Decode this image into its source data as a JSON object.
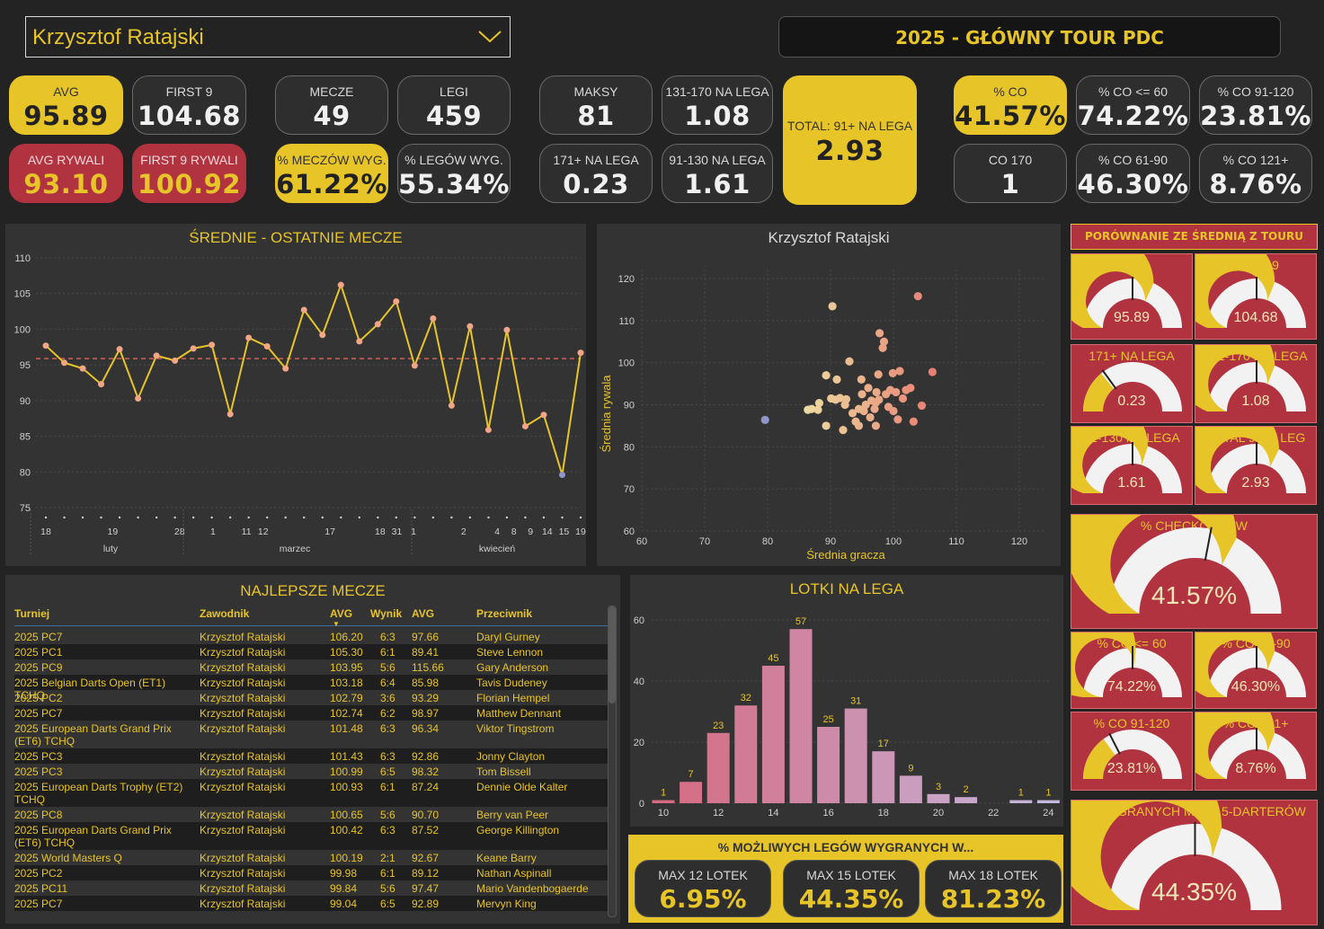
{
  "header": {
    "player_select": "Krzysztof Ratajski",
    "tour_title": "2025 - GŁÓWNY TOUR PDC"
  },
  "kpis": [
    {
      "id": "avg",
      "label": "AVG",
      "value": "95.89",
      "style": "yellow"
    },
    {
      "id": "first9",
      "label": "FIRST 9",
      "value": "104.68",
      "style": "dark"
    },
    {
      "id": "avg-opp",
      "label": "AVG RYWALI",
      "value": "93.10",
      "style": "red"
    },
    {
      "id": "first9-opp",
      "label": "FIRST 9 RYWALI",
      "value": "100.92",
      "style": "red"
    },
    {
      "id": "matches",
      "label": "MECZE",
      "value": "49",
      "style": "dark"
    },
    {
      "id": "legs",
      "label": "LEGI",
      "value": "459",
      "style": "dark"
    },
    {
      "id": "match-win",
      "label": "% MECZÓW WYG.",
      "value": "61.22%",
      "style": "yellow"
    },
    {
      "id": "leg-win",
      "label": "% LEGÓW WYG.",
      "value": "55.34%",
      "style": "dark"
    },
    {
      "id": "max",
      "label": "MAKSY",
      "value": "81",
      "style": "dark"
    },
    {
      "id": "s131",
      "label": "131-170 NA LEGA",
      "value": "1.08",
      "style": "dark"
    },
    {
      "id": "s171",
      "label": "171+ NA LEGA",
      "value": "0.23",
      "style": "dark"
    },
    {
      "id": "s91",
      "label": "91-130 NA LEGA",
      "value": "1.61",
      "style": "dark"
    },
    {
      "id": "total91",
      "label": "TOTAL: 91+ NA LEGA",
      "value": "2.93",
      "style": "yellow"
    },
    {
      "id": "co",
      "label": "% CO",
      "value": "41.57%",
      "style": "yellow"
    },
    {
      "id": "co60",
      "label": "% CO <= 60",
      "value": "74.22%",
      "style": "dark"
    },
    {
      "id": "co91",
      "label": "% CO 91-120",
      "value": "23.81%",
      "style": "dark"
    },
    {
      "id": "co170",
      "label": "CO 170",
      "value": "1",
      "style": "dark"
    },
    {
      "id": "co61",
      "label": "% CO 61-90",
      "value": "46.30%",
      "style": "dark"
    },
    {
      "id": "co121",
      "label": "% CO 121+",
      "value": "8.76%",
      "style": "dark"
    }
  ],
  "chart_data": [
    {
      "type": "line",
      "title": "ŚREDNIE - OSTATNIE MECZE",
      "ylim": [
        75,
        110
      ],
      "yticks": [
        75,
        80,
        85,
        90,
        95,
        100,
        105,
        110
      ],
      "reference_line": 95.89,
      "series": [
        {
          "values": [
            97.7,
            95.3,
            94.5,
            92.3,
            97.2,
            90.3,
            96.3,
            95.6,
            97.3,
            97.8,
            88.1,
            98.8,
            97.6,
            94.5,
            102.7,
            99.2,
            106.2,
            98.3,
            100.7,
            103.9,
            94.9,
            101.5,
            89.3,
            100.4,
            85.9,
            99.9,
            86.4,
            88.0,
            79.6,
            96.7
          ]
        }
      ],
      "x_tick_labels": [
        "18",
        "19",
        "28",
        "1",
        "11",
        "12",
        "17",
        "18",
        "31",
        "1",
        "2",
        "4",
        "8",
        "9",
        "14",
        "15",
        "19"
      ],
      "x_month_labels": [
        "luty",
        "marzec",
        "kwiecień"
      ],
      "grid": true
    },
    {
      "type": "scatter",
      "title": "Krzysztof Ratajski",
      "xlabel": "Średnia gracza",
      "ylabel": "Średnia rywala",
      "xlim": [
        60,
        120
      ],
      "ylim": [
        60,
        120
      ],
      "xticks": [
        60,
        70,
        80,
        90,
        100,
        110,
        120
      ],
      "yticks": [
        60,
        70,
        80,
        90,
        100,
        110,
        120
      ],
      "points": [
        [
          79.6,
          86.4
        ],
        [
          86.4,
          88.8
        ],
        [
          87.0,
          89.0
        ],
        [
          88.0,
          88.8
        ],
        [
          88.2,
          90.4
        ],
        [
          89.3,
          85.0
        ],
        [
          89.3,
          97.0
        ],
        [
          90.1,
          91.5
        ],
        [
          90.3,
          113.4
        ],
        [
          90.8,
          91.2
        ],
        [
          91.0,
          96.0
        ],
        [
          91.5,
          91.6
        ],
        [
          92.0,
          84.0
        ],
        [
          92.3,
          90.0
        ],
        [
          92.5,
          91.3
        ],
        [
          93.0,
          100.3
        ],
        [
          93.5,
          88.0
        ],
        [
          94.0,
          86.0
        ],
        [
          94.5,
          85.0
        ],
        [
          94.5,
          89.0
        ],
        [
          94.9,
          96.0
        ],
        [
          95.0,
          92.5
        ],
        [
          95.3,
          88.5
        ],
        [
          95.6,
          90.0
        ],
        [
          96.0,
          94.0
        ],
        [
          96.3,
          87.0
        ],
        [
          96.5,
          91.0
        ],
        [
          97.0,
          89.0
        ],
        [
          97.2,
          90.5
        ],
        [
          97.2,
          85.0
        ],
        [
          97.3,
          93.0
        ],
        [
          97.6,
          97.2
        ],
        [
          97.7,
          91.2
        ],
        [
          97.8,
          107.0
        ],
        [
          98.3,
          103.5
        ],
        [
          98.5,
          105.0
        ],
        [
          98.8,
          92.5
        ],
        [
          99.2,
          89.5
        ],
        [
          99.5,
          93.5
        ],
        [
          99.9,
          97.5
        ],
        [
          100.0,
          88.5
        ],
        [
          100.4,
          93.0
        ],
        [
          100.7,
          86.5
        ],
        [
          101.0,
          98.0
        ],
        [
          101.5,
          91.5
        ],
        [
          102.0,
          93.5
        ],
        [
          102.7,
          94.0
        ],
        [
          103.2,
          86.0
        ],
        [
          103.9,
          115.8
        ],
        [
          104.5,
          89.8
        ],
        [
          106.2,
          97.8
        ]
      ],
      "grid": true
    },
    {
      "type": "bar",
      "title": "LOTKI NA LEGA",
      "categories": [
        10,
        11,
        12,
        13,
        14,
        15,
        16,
        17,
        18,
        19,
        20,
        21,
        22,
        23,
        24
      ],
      "values": [
        1,
        7,
        23,
        32,
        45,
        57,
        25,
        31,
        17,
        9,
        3,
        2,
        0,
        1,
        1
      ],
      "xticks": [
        10,
        12,
        14,
        16,
        18,
        20,
        22,
        24
      ],
      "yticks": [
        0,
        20,
        40,
        60
      ],
      "ylim": [
        0,
        60
      ]
    }
  ],
  "table": {
    "title": "NAJLEPSZE MECZE",
    "columns": [
      "Turniej",
      "Zawodnik",
      "AVG",
      "Wynik",
      "AVG",
      "Przeciwnik"
    ],
    "rows": [
      [
        "2025 PC7",
        "Krzysztof Ratajski",
        "106.20",
        "6:3",
        "97.66",
        "Daryl Gurney"
      ],
      [
        "2025 PC1",
        "Krzysztof Ratajski",
        "105.30",
        "6:1",
        "89.41",
        "Steve Lennon"
      ],
      [
        "2025 PC9",
        "Krzysztof Ratajski",
        "103.95",
        "5:6",
        "115.66",
        "Gary Anderson"
      ],
      [
        "2025 Belgian Darts Open (ET1) TCHQ",
        "Krzysztof Ratajski",
        "103.18",
        "6:4",
        "85.98",
        "Tavis Dudeney"
      ],
      [
        "2025 PC2",
        "Krzysztof Ratajski",
        "102.79",
        "3:6",
        "93.29",
        "Florian Hempel"
      ],
      [
        "2025 PC7",
        "Krzysztof Ratajski",
        "102.74",
        "6:2",
        "98.97",
        "Matthew Dennant"
      ],
      [
        "2025 European Darts Grand Prix (ET6) TCHQ",
        "Krzysztof Ratajski",
        "101.48",
        "6:3",
        "96.34",
        "Viktor Tingstrom"
      ],
      [
        "2025 PC3",
        "Krzysztof Ratajski",
        "101.43",
        "6:3",
        "92.86",
        "Jonny Clayton"
      ],
      [
        "2025 PC3",
        "Krzysztof Ratajski",
        "100.99",
        "6:5",
        "98.32",
        "Tom Bissell"
      ],
      [
        "2025 European Darts Trophy (ET2) TCHQ",
        "Krzysztof Ratajski",
        "100.93",
        "6:1",
        "87.24",
        "Dennie Olde Kalter"
      ],
      [
        "2025 PC8",
        "Krzysztof Ratajski",
        "100.65",
        "5:6",
        "90.70",
        "Berry van Peer"
      ],
      [
        "2025 European Darts Grand Prix (ET6) TCHQ",
        "Krzysztof Ratajski",
        "100.42",
        "6:3",
        "87.52",
        "George Killington"
      ],
      [
        "2025 World Masters Q",
        "Krzysztof Ratajski",
        "100.19",
        "2:1",
        "92.67",
        "Keane Barry"
      ],
      [
        "2025 PC2",
        "Krzysztof Ratajski",
        "99.98",
        "6:1",
        "89.12",
        "Nathan Aspinall"
      ],
      [
        "2025 PC11",
        "Krzysztof Ratajski",
        "99.84",
        "5:6",
        "97.47",
        "Mario Vandenbogaerde"
      ],
      [
        "2025 PC7",
        "Krzysztof Ratajski",
        "99.04",
        "6:5",
        "92.89",
        "Mervyn King"
      ]
    ]
  },
  "comparison": {
    "title": "PORÓWNANIE ZE ŚREDNIĄ Z TOURU",
    "gauges": [
      {
        "id": "avg",
        "label": "AVG",
        "value_text": "95.89",
        "fill": 0.64,
        "target": 0.5
      },
      {
        "id": "first9",
        "label": "FIRST 9",
        "value_text": "104.68",
        "fill": 0.62,
        "target": 0.5
      },
      {
        "id": "s171",
        "label": "171+ NA LEGA",
        "value_text": "0.23",
        "fill": 0.28,
        "target": 0.3
      },
      {
        "id": "s131",
        "label": "131-170 NA LEGA",
        "value_text": "1.08",
        "fill": 0.62,
        "target": 0.5
      },
      {
        "id": "s91",
        "label": "91-130 NA LEGA",
        "value_text": "1.61",
        "fill": 0.6,
        "target": 0.5
      },
      {
        "id": "total91",
        "label": "TOTAL 91+ / LEG",
        "value_text": "2.93",
        "fill": 0.65,
        "target": 0.5
      },
      {
        "id": "checkout",
        "label": "% CHECKOUTÓW",
        "value_text": "41.57%",
        "fill": 0.66,
        "target": 0.56
      },
      {
        "id": "co60",
        "label": "% CO <= 60",
        "value_text": "74.22%",
        "fill": 0.52,
        "target": 0.5
      },
      {
        "id": "co61",
        "label": "% CO 61-90",
        "value_text": "46.30%",
        "fill": 0.62,
        "target": 0.5
      },
      {
        "id": "co91",
        "label": "% CO 91-120",
        "value_text": "23.81%",
        "fill": 0.3,
        "target": 0.35
      },
      {
        "id": "co121",
        "label": "% CO 121+",
        "value_text": "8.76%",
        "fill": 0.62,
        "target": 0.5
      },
      {
        "id": "win15",
        "label": "% WYGRANYCH MAX 15-DARTERÓW",
        "value_text": "44.35%",
        "fill": 0.6,
        "target": 0.5
      }
    ]
  },
  "possible_legs": {
    "title": "% MOŻLIWYCH LEGÓW WYGRANYCH W...",
    "cards": [
      {
        "label": "MAX 12 LOTEK",
        "value": "6.95%"
      },
      {
        "label": "MAX 15 LOTEK",
        "value": "44.35%"
      },
      {
        "label": "MAX 18 LOTEK",
        "value": "81.23%"
      }
    ]
  },
  "colors": {
    "accent_yellow": "#e7c428",
    "accent_red": "#b23340",
    "panel_bg": "#333333",
    "page_bg": "#232323",
    "bar_pink": "#d07c94",
    "bar_light": "#c9a4c4"
  }
}
